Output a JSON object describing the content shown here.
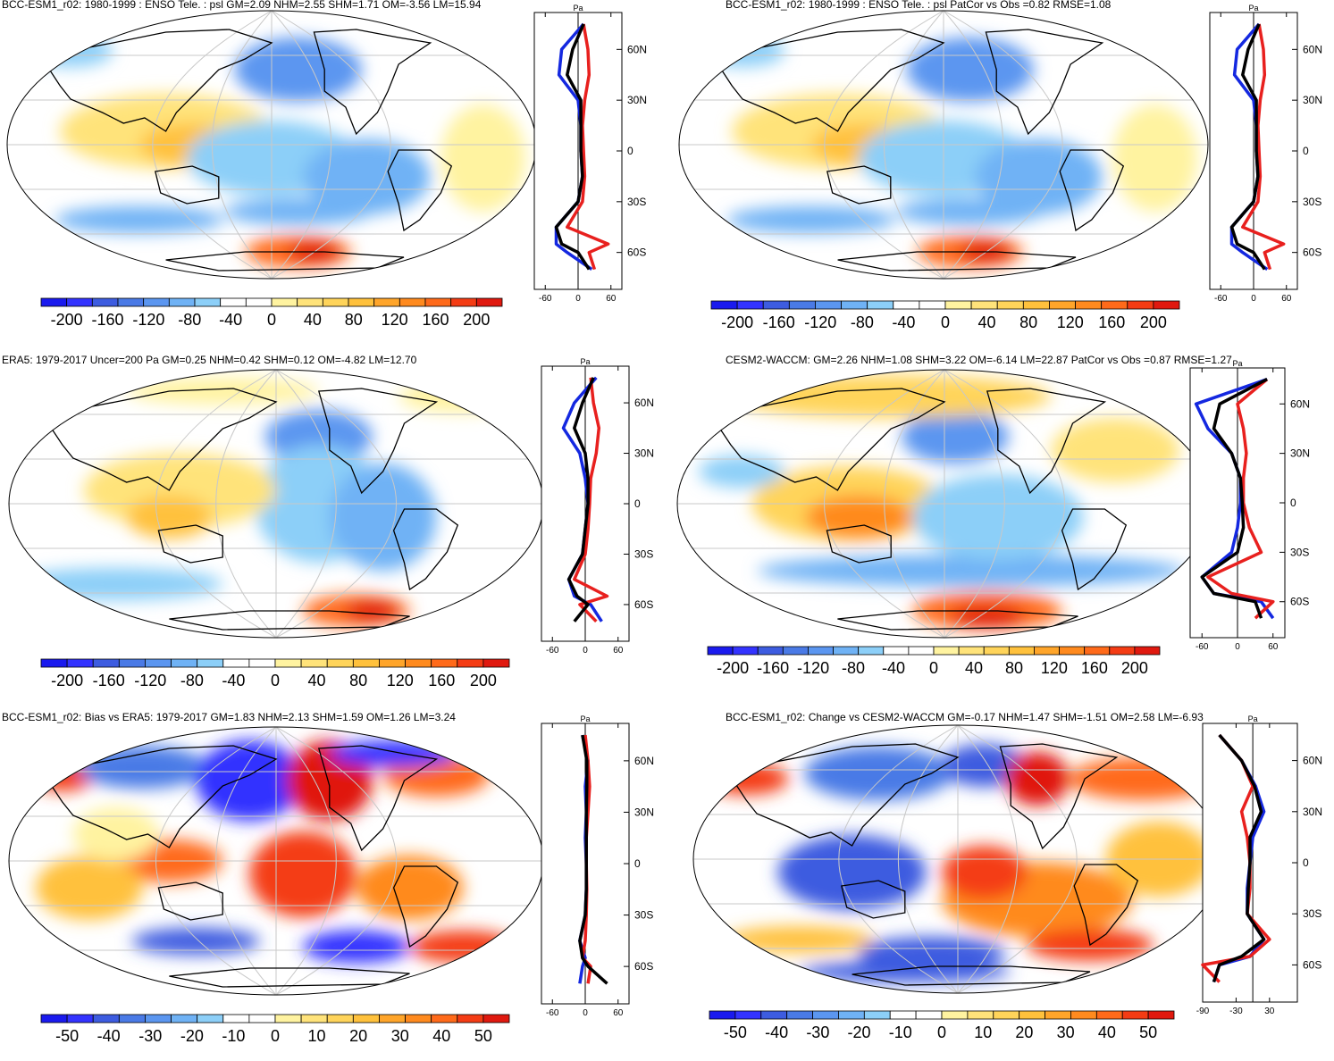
{
  "panels": [
    {
      "title": "BCC-ESM1_r02: 1980-1999 : ENSO Tele. : psl GM=2.09 NHM=2.55 SHM=1.71 OM=-3.56 LM=15.94",
      "lat_labels": [
        "60N",
        "30N",
        "0",
        "30S",
        "60S"
      ],
      "profile_unit": "Pa",
      "profile_ticks": [
        "-60",
        "0",
        "60"
      ],
      "colorbar_labels": [
        "-200",
        "-160",
        "-120",
        "-80",
        "-40",
        "0",
        "40",
        "80",
        "120",
        "160",
        "200"
      ],
      "scale": "wide"
    },
    {
      "title": "BCC-ESM1_r02: 1980-1999 : ENSO Tele. : psl PatCor vs Obs =0.82 RMSE=1.08",
      "lat_labels": [
        "60N",
        "30N",
        "0",
        "30S",
        "60S"
      ],
      "profile_unit": "Pa",
      "profile_ticks": [
        "-60",
        "0",
        "60"
      ],
      "colorbar_labels": [
        "-200",
        "-160",
        "-120",
        "-80",
        "-40",
        "0",
        "40",
        "80",
        "120",
        "160",
        "200"
      ],
      "scale": "wide"
    },
    {
      "title": "ERA5: 1979-2017 Uncer=200 Pa GM=0.25 NHM=0.42 SHM=0.12 OM=-4.82 LM=12.70",
      "lat_labels": [
        "60N",
        "30N",
        "0",
        "30S",
        "60S"
      ],
      "profile_unit": "Pa",
      "profile_ticks": [
        "-60",
        "0",
        "60"
      ],
      "colorbar_labels": [
        "-200",
        "-160",
        "-120",
        "-80",
        "-40",
        "0",
        "40",
        "80",
        "120",
        "160",
        "200"
      ],
      "scale": "wide"
    },
    {
      "title": "CESM2-WACCM: GM=2.26 NHM=1.08 SHM=3.22 OM=-6.14 LM=22.87 PatCor vs Obs =0.87 RMSE=1.27",
      "lat_labels": [
        "60N",
        "30N",
        "0",
        "30S",
        "60S"
      ],
      "profile_unit": "Pa",
      "profile_ticks": [
        "-60",
        "0",
        "60"
      ],
      "colorbar_labels": [
        "-200",
        "-160",
        "-120",
        "-80",
        "-40",
        "0",
        "40",
        "80",
        "120",
        "160",
        "200"
      ],
      "scale": "wide"
    },
    {
      "title": "BCC-ESM1_r02: Bias vs ERA5: 1979-2017 GM=1.83 NHM=2.13 SHM=1.59 OM=1.26 LM=3.24",
      "lat_labels": [
        "60N",
        "30N",
        "0",
        "30S",
        "60S"
      ],
      "profile_unit": "Pa",
      "profile_ticks": [
        "-60",
        "0",
        "60"
      ],
      "colorbar_labels": [
        "-50",
        "-40",
        "-30",
        "-20",
        "-10",
        "0",
        "10",
        "20",
        "30",
        "40",
        "50"
      ],
      "scale": "narrow"
    },
    {
      "title": "BCC-ESM1_r02: Change vs CESM2-WACCM GM=-0.17 NHM=1.47 SHM=-1.51 OM=2.58 LM=-6.93",
      "lat_labels": [
        "60N",
        "30N",
        "0",
        "30S",
        "60S"
      ],
      "profile_unit": "Pa",
      "profile_ticks": [
        "-90",
        "-30",
        "30"
      ],
      "colorbar_labels": [
        "-50",
        "-40",
        "-30",
        "-20",
        "-10",
        "0",
        "10",
        "20",
        "30",
        "40",
        "50"
      ],
      "scale": "narrow"
    }
  ],
  "colors": {
    "palette": [
      "#1a1aee",
      "#3333ff",
      "#3d5ce0",
      "#4a7ae6",
      "#5b96f0",
      "#6fb2f5",
      "#8ccff8",
      "#ffffff",
      "#ffffff",
      "#fff3a0",
      "#ffe37a",
      "#ffd45a",
      "#ffc13c",
      "#ffa52a",
      "#ff8a1e",
      "#ff6a1a",
      "#f43c14",
      "#e0190f"
    ],
    "profile_model": "#e8201e",
    "profile_obs": "#1428e0",
    "profile_mean": "#000000"
  },
  "chart_data": [
    {
      "type": "heatmap",
      "title": "BCC-ESM1_r02: 1980-1999 : ENSO Tele. : psl GM=2.09 NHM=2.55 SHM=1.71 OM=-3.56 LM=15.94",
      "ylabel": "",
      "xlabel": "",
      "colorbar_range": [
        -200,
        200
      ],
      "profile": {
        "lat": [
          75,
          60,
          45,
          30,
          15,
          0,
          -15,
          -30,
          -45,
          -55,
          -60,
          -70
        ],
        "red": [
          10,
          18,
          20,
          12,
          8,
          10,
          12,
          8,
          -20,
          55,
          20,
          30
        ],
        "blue": [
          10,
          -30,
          -35,
          0,
          5,
          5,
          8,
          0,
          -40,
          -40,
          -20,
          25
        ],
        "black": [
          10,
          -10,
          -20,
          5,
          5,
          5,
          8,
          0,
          -40,
          -30,
          0,
          20
        ]
      }
    },
    {
      "type": "heatmap",
      "title": "BCC-ESM1_r02: 1980-1999 : ENSO Tele. : psl PatCor vs Obs =0.82 RMSE=1.08",
      "colorbar_range": [
        -200,
        200
      ],
      "profile": {
        "lat": [
          75,
          60,
          45,
          30,
          15,
          0,
          -15,
          -30,
          -45,
          -55,
          -60,
          -70
        ],
        "red": [
          10,
          18,
          20,
          12,
          8,
          10,
          12,
          8,
          -20,
          55,
          20,
          30
        ],
        "blue": [
          10,
          -30,
          -35,
          0,
          5,
          5,
          8,
          0,
          -40,
          -40,
          -20,
          25
        ],
        "black": [
          10,
          -10,
          -20,
          5,
          5,
          5,
          8,
          0,
          -40,
          -30,
          0,
          20
        ]
      }
    },
    {
      "type": "heatmap",
      "title": "ERA5: 1979-2017 Uncer=200 Pa GM=0.25 NHM=0.42 SHM=0.12 OM=-4.82 LM=12.70",
      "colorbar_range": [
        -200,
        200
      ],
      "profile": {
        "lat": [
          75,
          60,
          45,
          30,
          15,
          0,
          -15,
          -30,
          -45,
          -55,
          -60,
          -70
        ],
        "red": [
          10,
          15,
          25,
          20,
          10,
          8,
          5,
          0,
          -20,
          40,
          -10,
          20
        ],
        "blue": [
          20,
          -20,
          -40,
          -10,
          0,
          5,
          0,
          -5,
          -30,
          -20,
          10,
          30
        ],
        "black": [
          15,
          -5,
          -20,
          0,
          5,
          5,
          0,
          -5,
          -30,
          -15,
          5,
          -20
        ]
      }
    },
    {
      "type": "heatmap",
      "title": "CESM2-WACCM: GM=2.26 NHM=1.08 SHM=3.22 OM=-6.14 LM=22.87 PatCor vs Obs =0.87 RMSE=1.27",
      "colorbar_range": [
        -200,
        200
      ],
      "profile": {
        "lat": [
          75,
          60,
          45,
          30,
          15,
          0,
          -15,
          -30,
          -45,
          -55,
          -60,
          -70
        ],
        "red": [
          50,
          0,
          10,
          15,
          10,
          10,
          20,
          40,
          -50,
          -10,
          60,
          30
        ],
        "blue": [
          50,
          -70,
          -50,
          -10,
          5,
          5,
          0,
          -10,
          -60,
          -40,
          40,
          60
        ],
        "black": [
          50,
          -30,
          -40,
          -10,
          5,
          8,
          10,
          0,
          -60,
          -40,
          30,
          40
        ]
      }
    },
    {
      "type": "heatmap",
      "title": "BCC-ESM1_r02: Bias vs ERA5: 1979-2017 GM=1.83 NHM=2.13 SHM=1.59 OM=1.26 LM=3.24",
      "colorbar_range": [
        -50,
        50
      ],
      "profile": {
        "lat": [
          75,
          60,
          45,
          30,
          15,
          0,
          -15,
          -30,
          -45,
          -55,
          -60,
          -70
        ],
        "red": [
          0,
          5,
          8,
          5,
          2,
          2,
          3,
          2,
          0,
          -5,
          10,
          5
        ],
        "blue": [
          -5,
          5,
          0,
          2,
          0,
          2,
          2,
          0,
          -10,
          0,
          -5,
          -10
        ],
        "black": [
          -5,
          3,
          3,
          2,
          2,
          2,
          2,
          0,
          -10,
          -5,
          5,
          40
        ]
      }
    },
    {
      "type": "heatmap",
      "title": "BCC-ESM1_r02: Change vs CESM2-WACCM GM=-0.17 NHM=1.47 SHM=-1.51 OM=2.58 LM=-6.93",
      "colorbar_range": [
        -50,
        50
      ],
      "profile": {
        "lat": [
          75,
          60,
          45,
          30,
          15,
          0,
          -15,
          -30,
          -45,
          -55,
          -60,
          -70
        ],
        "red": [
          -60,
          -20,
          0,
          -20,
          -10,
          -5,
          -5,
          -10,
          30,
          -5,
          -90,
          -60
        ],
        "blue": [
          -60,
          -20,
          5,
          20,
          0,
          -5,
          -10,
          -10,
          20,
          -5,
          -60,
          -70
        ],
        "black": [
          -60,
          -20,
          3,
          15,
          -5,
          -5,
          -8,
          -10,
          20,
          -20,
          -60,
          -70
        ]
      }
    }
  ]
}
